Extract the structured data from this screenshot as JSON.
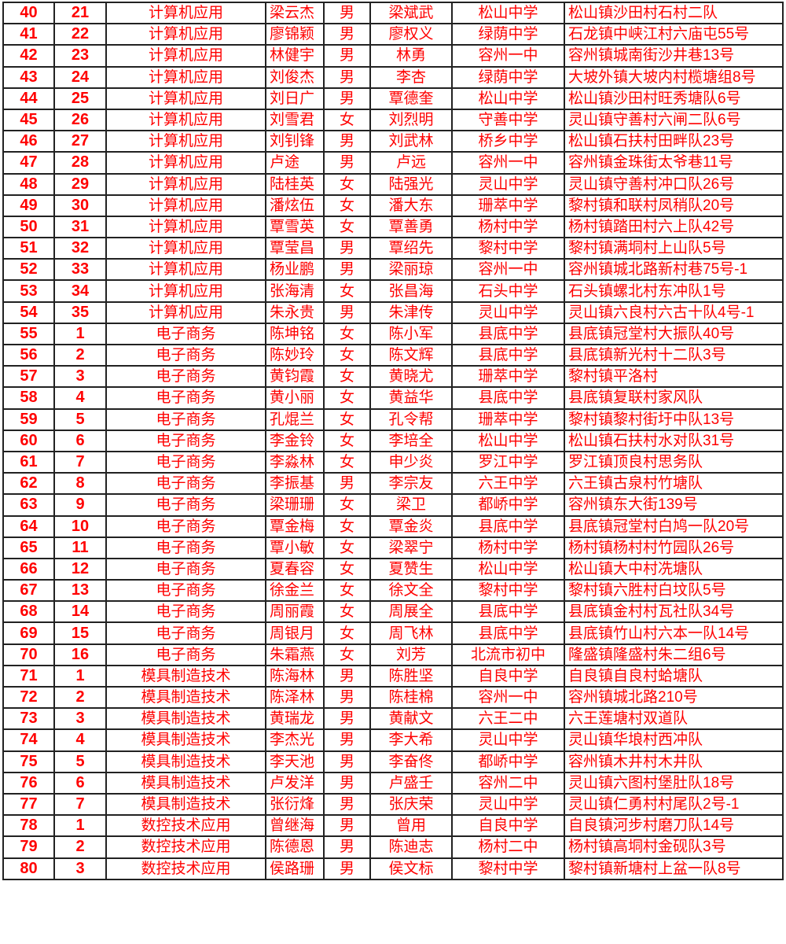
{
  "sheet": {
    "text_color": "#ff0000",
    "rows": [
      [
        "40",
        "21",
        "计算机应用",
        "梁云杰",
        "男",
        "梁斌武",
        "松山中学",
        "松山镇沙田村石村二队"
      ],
      [
        "41",
        "22",
        "计算机应用",
        "廖锦颖",
        "男",
        "廖权义",
        "绿荫中学",
        "石龙镇中峡江村六庙屯55号"
      ],
      [
        "42",
        "23",
        "计算机应用",
        "林健宇",
        "男",
        "林勇",
        "容州一中",
        "容州镇城南街沙井巷13号"
      ],
      [
        "43",
        "24",
        "计算机应用",
        "刘俊杰",
        "男",
        "李杏",
        "绿荫中学",
        "大坡外镇大坡内村榄塘组8号"
      ],
      [
        "44",
        "25",
        "计算机应用",
        "刘日广",
        "男",
        "覃德奎",
        "松山中学",
        "松山镇沙田村旺秀塘队6号"
      ],
      [
        "45",
        "26",
        "计算机应用",
        "刘雪君",
        "女",
        "刘烈明",
        "守善中学",
        "灵山镇守善村六闸二队6号"
      ],
      [
        "46",
        "27",
        "计算机应用",
        "刘钊锋",
        "男",
        "刘武林",
        "桥乡中学",
        "松山镇石扶村田畔队23号"
      ],
      [
        "47",
        "28",
        "计算机应用",
        "卢途",
        "男",
        "卢远",
        "容州一中",
        "容州镇金珠街太爷巷11号"
      ],
      [
        "48",
        "29",
        "计算机应用",
        "陆桂英",
        "女",
        "陆强光",
        "灵山中学",
        "灵山镇守善村冲口队26号"
      ],
      [
        "49",
        "30",
        "计算机应用",
        "潘炫伍",
        "女",
        "潘大东",
        "珊萃中学",
        "黎村镇和联村凤稍队20号"
      ],
      [
        "50",
        "31",
        "计算机应用",
        "覃雪英",
        "女",
        "覃善勇",
        "杨村中学",
        "杨村镇踏田村六上队42号"
      ],
      [
        "51",
        "32",
        "计算机应用",
        "覃莹昌",
        "男",
        "覃绍先",
        "黎村中学",
        "黎村镇满垌村上山队5号"
      ],
      [
        "52",
        "33",
        "计算机应用",
        "杨业鹏",
        "男",
        "梁丽琼",
        "容州一中",
        "容州镇城北路新村巷75号-1"
      ],
      [
        "53",
        "34",
        "计算机应用",
        "张海清",
        "女",
        "张昌海",
        "石头中学",
        "石头镇螺北村东冲队1号"
      ],
      [
        "54",
        "35",
        "计算机应用",
        "朱永贵",
        "男",
        "朱津传",
        "灵山中学",
        "灵山镇六良村六古十队4号-1"
      ],
      [
        "55",
        "1",
        "电子商务",
        "陈坤铭",
        "女",
        "陈小军",
        "县底中学",
        "县底镇冠堂村大振队40号"
      ],
      [
        "56",
        "2",
        "电子商务",
        "陈妙玲",
        "女",
        "陈文辉",
        "县底中学",
        "县底镇新光村十二队3号"
      ],
      [
        "57",
        "3",
        "电子商务",
        "黄钧霞",
        "女",
        "黄晓尤",
        "珊萃中学",
        "黎村镇平洛村"
      ],
      [
        "58",
        "4",
        "电子商务",
        "黄小丽",
        "女",
        "黄益华",
        "县底中学",
        "县底镇复联村家风队"
      ],
      [
        "59",
        "5",
        "电子商务",
        "孔焜兰",
        "女",
        "孔令帮",
        "珊萃中学",
        "黎村镇黎村街圩中队13号"
      ],
      [
        "60",
        "6",
        "电子商务",
        "李金铃",
        "女",
        "李培全",
        "松山中学",
        "松山镇石扶村水对队31号"
      ],
      [
        "61",
        "7",
        "电子商务",
        "李淼林",
        "女",
        "申少炎",
        "罗江中学",
        "罗江镇顶良村思务队"
      ],
      [
        "62",
        "8",
        "电子商务",
        "李振基",
        "男",
        "李宗友",
        "六王中学",
        "六王镇古泉村竹塘队"
      ],
      [
        "63",
        "9",
        "电子商务",
        "梁珊珊",
        "女",
        "梁卫",
        "都峤中学",
        "容州镇东大街139号"
      ],
      [
        "64",
        "10",
        "电子商务",
        "覃金梅",
        "女",
        "覃金炎",
        "县底中学",
        "县底镇冠堂村白鸠一队20号"
      ],
      [
        "65",
        "11",
        "电子商务",
        "覃小敏",
        "女",
        "梁翠宁",
        "杨村中学",
        "杨村镇杨村村竹园队26号"
      ],
      [
        "66",
        "12",
        "电子商务",
        "夏春容",
        "女",
        "夏赞生",
        "松山中学",
        "松山镇大中村冼塘队"
      ],
      [
        "67",
        "13",
        "电子商务",
        "徐金兰",
        "女",
        "徐文全",
        "黎村中学",
        "黎村镇六胜村白坟队5号"
      ],
      [
        "68",
        "14",
        "电子商务",
        "周丽霞",
        "女",
        "周展全",
        "县底中学",
        "县底镇金村村瓦社队34号"
      ],
      [
        "69",
        "15",
        "电子商务",
        "周银月",
        "女",
        "周飞林",
        "县底中学",
        "县底镇竹山村六本一队14号"
      ],
      [
        "70",
        "16",
        "电子商务",
        "朱霜燕",
        "女",
        "刘芳",
        "北流市初中",
        "隆盛镇隆盛村朱二组6号"
      ],
      [
        "71",
        "1",
        "模具制造技术",
        "陈海林",
        "男",
        "陈胜坚",
        "自良中学",
        "自良镇自良村蛤塘队"
      ],
      [
        "72",
        "2",
        "模具制造技术",
        "陈泽林",
        "男",
        "陈桂棉",
        "容州一中",
        "容州镇城北路210号"
      ],
      [
        "73",
        "3",
        "模具制造技术",
        "黄瑞龙",
        "男",
        "黄献文",
        "六王二中",
        "六王莲塘村双道队"
      ],
      [
        "74",
        "4",
        "模具制造技术",
        "李杰光",
        "男",
        "李大希",
        "灵山中学",
        "灵山镇华埌村西冲队"
      ],
      [
        "75",
        "5",
        "模具制造技术",
        "李天池",
        "男",
        "李奋佟",
        "都峤中学",
        "容州镇木井村木井队"
      ],
      [
        "76",
        "6",
        "模具制造技术",
        "卢发洋",
        "男",
        "卢盛壬",
        "容州二中",
        "灵山镇六图村堡肚队18号"
      ],
      [
        "77",
        "7",
        "模具制造技术",
        "张衍烽",
        "男",
        "张庆荣",
        "灵山中学",
        "灵山镇仁勇村村尾队2号-1"
      ],
      [
        "78",
        "1",
        "数控技术应用",
        "曾继海",
        "男",
        "曾用",
        "自良中学",
        "自良镇河步村磨刀队14号"
      ],
      [
        "79",
        "2",
        "数控技术应用",
        "陈德恩",
        "男",
        "陈迪志",
        "杨村二中",
        "杨村镇高垌村金砚队3号"
      ],
      [
        "80",
        "3",
        "数控技术应用",
        "侯路珊",
        "男",
        "侯文标",
        "黎村中学",
        "黎村镇新塘村上盆一队8号"
      ]
    ]
  }
}
